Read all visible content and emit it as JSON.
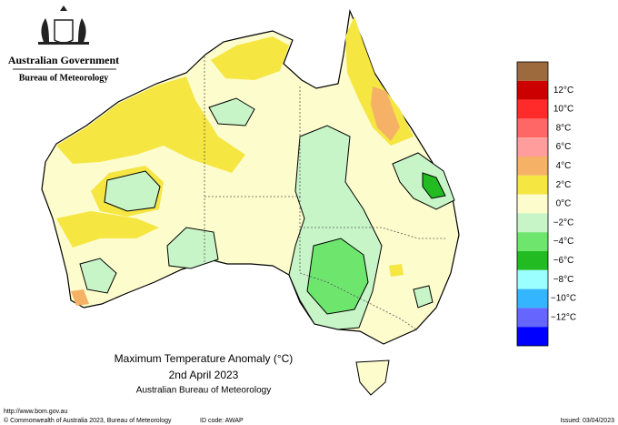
{
  "header": {
    "agency": "Australian Government",
    "bureau": "Bureau of Meteorology"
  },
  "map": {
    "title": "Maximum Temperature Anomaly (°C)",
    "date": "2nd April 2023",
    "source": "Australian Bureau of Meteorology"
  },
  "legend": {
    "items": [
      {
        "color": "#9c6a3c"
      },
      {
        "color": "#cc0000",
        "label": "12°C"
      },
      {
        "color": "#ff2a2a",
        "label": "10°C"
      },
      {
        "color": "#ff6666",
        "label": "8°C"
      },
      {
        "color": "#ff9c9c",
        "label": "6°C"
      },
      {
        "color": "#f5b266",
        "label": "4°C"
      },
      {
        "color": "#f5e642",
        "label": "2°C"
      },
      {
        "color": "#fdfccc",
        "label": "0°C"
      },
      {
        "color": "#c8f5c8",
        "label": "−2°C"
      },
      {
        "color": "#6ee66e",
        "label": "−4°C"
      },
      {
        "color": "#22bb22",
        "label": "−6°C"
      },
      {
        "color": "#9cffff",
        "label": "−8°C"
      },
      {
        "color": "#33b5ff",
        "label": "−10°C"
      },
      {
        "color": "#6666ff",
        "label": "−12°C"
      },
      {
        "color": "#0000ff"
      }
    ]
  },
  "footer": {
    "url": "http://www.bom.gov.au",
    "copyright": "© Commonwealth of Australia 2023, Bureau of Meteorology",
    "id_code": "ID code: AWAP",
    "issued": "Issued: 03/04/2023"
  }
}
